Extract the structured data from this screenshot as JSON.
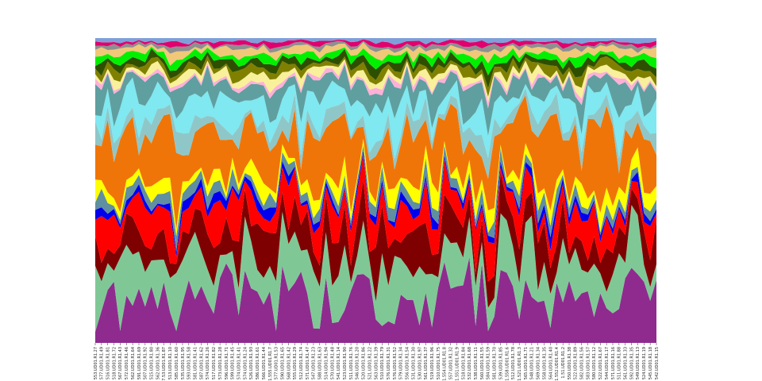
{
  "chart_data": {
    "type": "area",
    "stacking": "normalized",
    "ylim": [
      0,
      1
    ],
    "grid": false,
    "legend": "none",
    "categories": [
      "553.UD01.R1.27",
      "577.UD01.R1.49",
      "516.UD01.R1.81",
      "518.UD01.R1.72",
      "567.UD01.R1.43",
      "572.UD01.R1.46",
      "562.UD01.R1.64",
      "591.UD01.R1.69",
      "507.UD01.R1.92",
      "515.UD01.R1.80",
      "562.UD01.R1.36",
      "7.53.UD01.R1.87",
      "513.UD01.R1.10",
      "585.UD01.R1.60",
      "535.UD01.R1.95",
      "593.UD01.R1.58",
      "581.UD01.R1.41",
      "587.UD01.R1.62",
      "574.UD01.R1.26",
      "517.UD01.R1.82",
      "573.UD01.R1.28",
      "596.UD01.R1.71",
      "599.UD01.R1.45",
      "574.UD01.R1.41",
      "574.UD01.R1.24",
      "526.UD01.R1.93",
      "586.UD01.R1.61",
      "566.UD01.R1.44",
      "1.555.UD01.R1.7",
      "577.UD01.R1.53",
      "590.UD01.R1.65",
      "568.UD01.R1.42",
      "555.UD01.R1.29",
      "512.UD01.R1.74",
      "571.UD01.R1.47",
      "547.UD01.R1.23",
      "588.UD01.R1.63",
      "514.UD01.R1.94",
      "570.UD01.R1.48",
      "541.UD01.R1.14",
      "523.UD01.R1.90",
      "511.UD01.R1.76",
      "546.UD01.R1.20",
      "520.UD01.R1.86",
      "521.UD01.R1.22",
      "563.UD01.R1.39",
      "510.UD01.R1.79",
      "576.UD01.R1.31",
      "576.UD01.R1.52",
      "579.UD01.R1.34",
      "556.UD01.R1.54",
      "531.UD01.R1.30",
      "530.UD01.R1.97",
      "561.UD01.R1.37",
      "519.UD01.R1.96",
      "510.UD01.R1.75",
      "1.554.UD01.R1.8",
      "557.UD01.R1.32",
      "1.551.UD01.R1.9",
      "518.UD01.R1.84",
      "532.UD01.R1.68",
      "538.UD01.R1.11",
      "560.UD01.R1.55",
      "584.UD01.R1.59",
      "581.UD01.R1.70",
      "539.UD01.R1.85",
      "1.558.UD01.R1.6",
      "512.UD01.R1.78",
      "1.521.UD01.R1.3",
      "565.UD01.R1.71",
      "548.UD01.R1.21",
      "569.UD01.R1.34",
      "558.UD01.R1.35",
      "564.UD01.R1.40",
      "1.552.UD01.R1.4",
      "1.51.UD01.R1.2",
      "550.UD01.R1.38",
      "522.UD01.R1.89",
      "582.UD01.R1.56",
      "583.UD01.R1.57",
      "580.UD01.R1.12",
      "522.UD01.R1.67",
      "544.UD01.R1.17",
      "571.UD01.R1.16",
      "511.UD01.R1.88",
      "561.UD01.R1.33",
      "592.UD01.R1.35",
      "549.UD01.R1.13",
      "524.UD01.R1.19",
      "545.UD01.R1.18",
      "542.UD01.R1.15"
    ],
    "colors": [
      "#8f2b8f",
      "#7fc896",
      "#7f0000",
      "#ff0000",
      "#0000ee",
      "#5f8fa0",
      "#ffff00",
      "#f07508",
      "#8fc7c8",
      "#7fe8f0",
      "#5f9fa0",
      "#ffb0d8",
      "#f8f09a",
      "#808000",
      "#2f4f00",
      "#00f000",
      "#f0c878",
      "#8f8f8f",
      "#e0006e",
      "#7f9fd8"
    ]
  }
}
